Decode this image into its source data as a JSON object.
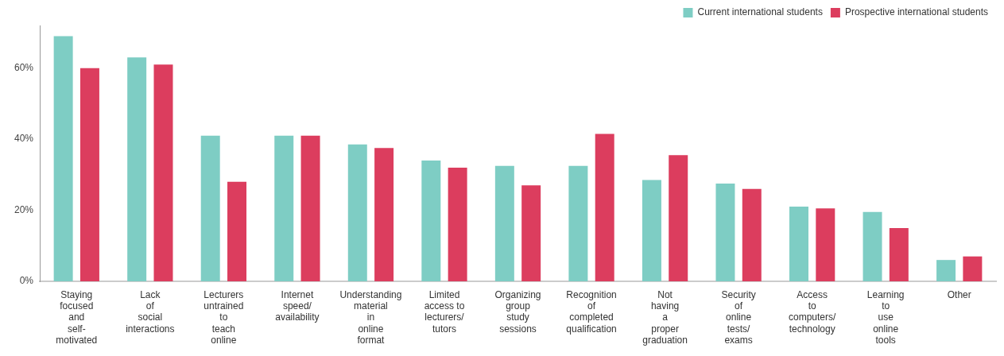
{
  "chart_data": {
    "type": "bar",
    "categories": [
      "Staying\nfocused\nand\nself-\nmotivated",
      "Lack\nof\nsocial\ninteractions",
      "Lecturers\nuntrained\nto\nteach\nonline",
      "Internet\nspeed/\navailability",
      "Understanding\nmaterial\nin\nonline\nformat",
      "Limited\naccess to\nlecturers/\ntutors",
      "Organizing\ngroup\nstudy\nsessions",
      "Recognition\nof\ncompleted\nqualification",
      "Not\nhaving\na\nproper\ngraduation",
      "Security\nof\nonline\ntests/\nexams",
      "Access\nto\ncomputers/\ntechnology",
      "Learning\nto\nuse\nonline\ntools",
      "Other"
    ],
    "series": [
      {
        "name": "Current international students",
        "color": "#7ecdc4",
        "values": [
          69,
          63,
          41,
          41,
          38.5,
          34,
          32.5,
          32.5,
          28.5,
          27.5,
          21,
          19.5,
          6
        ]
      },
      {
        "name": "Prospective international students",
        "color": "#dc3d5e",
        "values": [
          60,
          61,
          28,
          41,
          37.5,
          32,
          27,
          41.5,
          35.5,
          26,
          20.5,
          15,
          7
        ]
      }
    ],
    "ylim": [
      0,
      72
    ],
    "yticks": [
      {
        "value": 0,
        "label": "0%"
      },
      {
        "value": 20,
        "label": "20%"
      },
      {
        "value": 40,
        "label": "40%"
      },
      {
        "value": 60,
        "label": "60%"
      }
    ],
    "grid": false,
    "legend": "top right"
  }
}
